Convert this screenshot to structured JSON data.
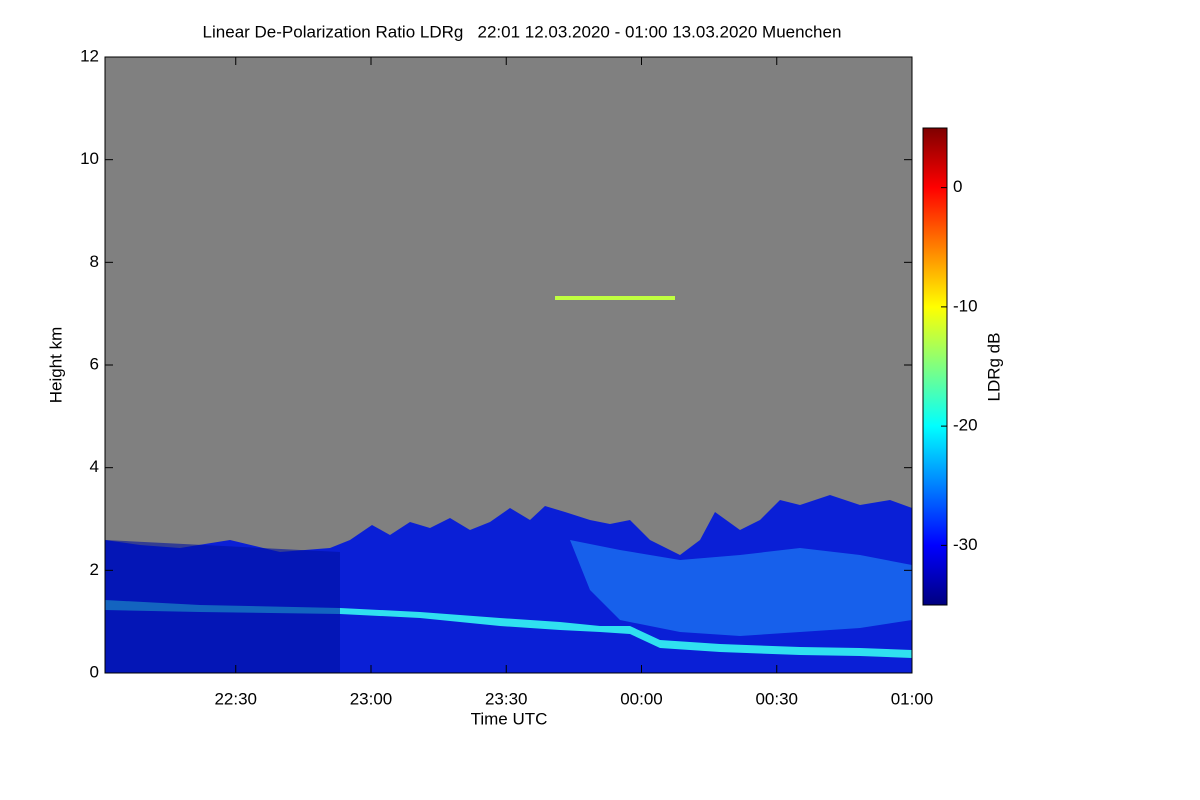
{
  "chart_data": {
    "type": "heatmap",
    "title": "Linear De-Polarization Ratio LDRg   22:01 12.03.2020 - 01:00 13.03.2020 Muenchen",
    "xlabel": "Time UTC",
    "ylabel": "Height km",
    "xlim": [
      1,
      180
    ],
    "xticks": [
      {
        "value": 30,
        "label": "22:30"
      },
      {
        "value": 60,
        "label": "23:00"
      },
      {
        "value": 90,
        "label": "23:30"
      },
      {
        "value": 120,
        "label": "00:00"
      },
      {
        "value": 150,
        "label": "00:30"
      },
      {
        "value": 180,
        "label": "01:00"
      }
    ],
    "ylim": [
      0,
      12
    ],
    "yticks": [
      0,
      2,
      4,
      6,
      8,
      10,
      12
    ],
    "colorbar": {
      "label": "LDRg dB",
      "lim": [
        -35,
        5
      ],
      "ticks": [
        0,
        -10,
        -20,
        -30
      ],
      "colormap": [
        "#00007f",
        "#0000ff",
        "#0080ff",
        "#00ffff",
        "#80ff80",
        "#ffff00",
        "#ff8000",
        "#ff0000",
        "#7f0000"
      ]
    },
    "missing_color": "#808080"
  }
}
